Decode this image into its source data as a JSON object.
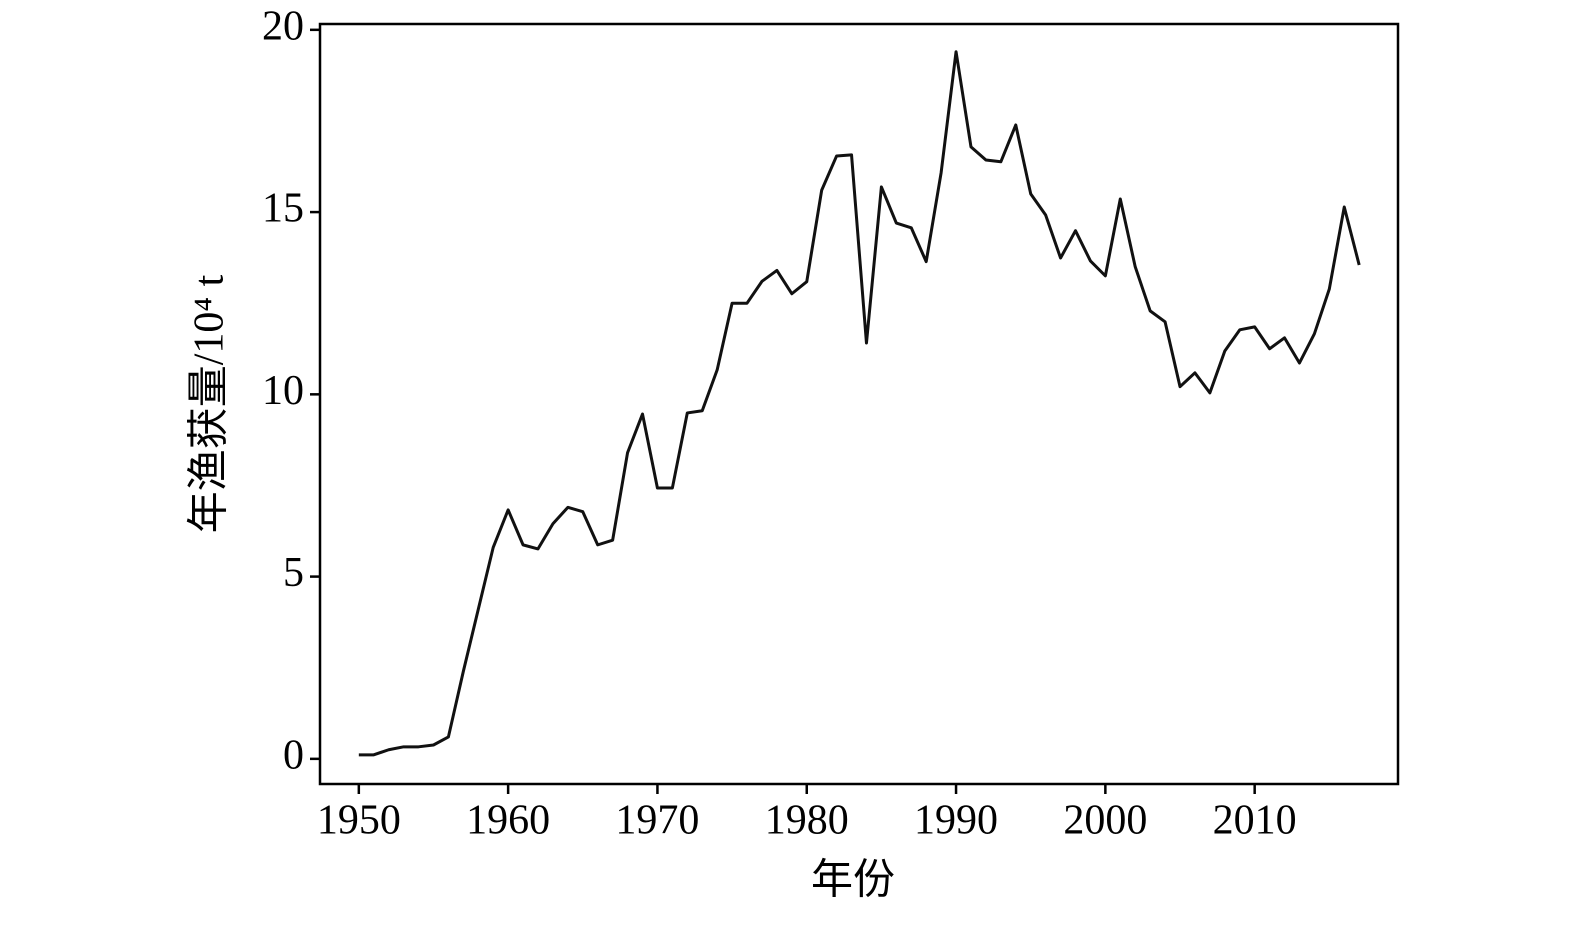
{
  "chart_data": {
    "type": "line",
    "xlabel": "年份",
    "ylabel": "年渔获量/10⁴ t",
    "x": [
      1950,
      1951,
      1952,
      1953,
      1954,
      1955,
      1956,
      1957,
      1958,
      1959,
      1960,
      1961,
      1962,
      1963,
      1964,
      1965,
      1966,
      1967,
      1968,
      1969,
      1970,
      1971,
      1972,
      1973,
      1974,
      1975,
      1976,
      1977,
      1978,
      1979,
      1980,
      1981,
      1982,
      1983,
      1984,
      1985,
      1986,
      1987,
      1988,
      1989,
      1990,
      1991,
      1992,
      1993,
      1994,
      1995,
      1996,
      1997,
      1998,
      1999,
      2000,
      2001,
      2002,
      2003,
      2004,
      2005,
      2006,
      2007,
      2008,
      2009,
      2010,
      2011,
      2012,
      2013,
      2014,
      2015,
      2016,
      2017
    ],
    "series": [
      {
        "color": "#111111",
        "values": [
          0.11,
          0.11,
          0.25,
          0.33,
          0.33,
          0.38,
          0.6,
          2.4,
          4.1,
          5.8,
          6.83,
          5.87,
          5.76,
          6.45,
          6.9,
          6.78,
          5.87,
          6.0,
          8.4,
          9.46,
          7.43,
          7.43,
          9.49,
          9.55,
          10.67,
          12.5,
          12.5,
          13.1,
          13.4,
          12.76,
          13.09,
          15.6,
          16.54,
          16.57,
          11.41,
          15.69,
          14.7,
          14.57,
          13.64,
          16.08,
          19.4,
          16.79,
          16.43,
          16.38,
          17.39,
          15.5,
          14.92,
          13.74,
          14.49,
          13.66,
          13.25,
          15.36,
          13.5,
          12.29,
          11.99,
          10.21,
          10.59,
          10.04,
          11.19,
          11.77,
          11.85,
          11.25,
          11.55,
          10.86,
          11.66,
          12.89,
          15.14,
          13.55
        ]
      }
    ],
    "xlim": [
      1947.4,
      2019.6
    ],
    "ylim": [
      -0.69,
      20.16
    ],
    "xticks": [
      1950,
      1960,
      1970,
      1980,
      1990,
      2000,
      2010
    ],
    "yticks": [
      0,
      5,
      10,
      15,
      20
    ]
  }
}
